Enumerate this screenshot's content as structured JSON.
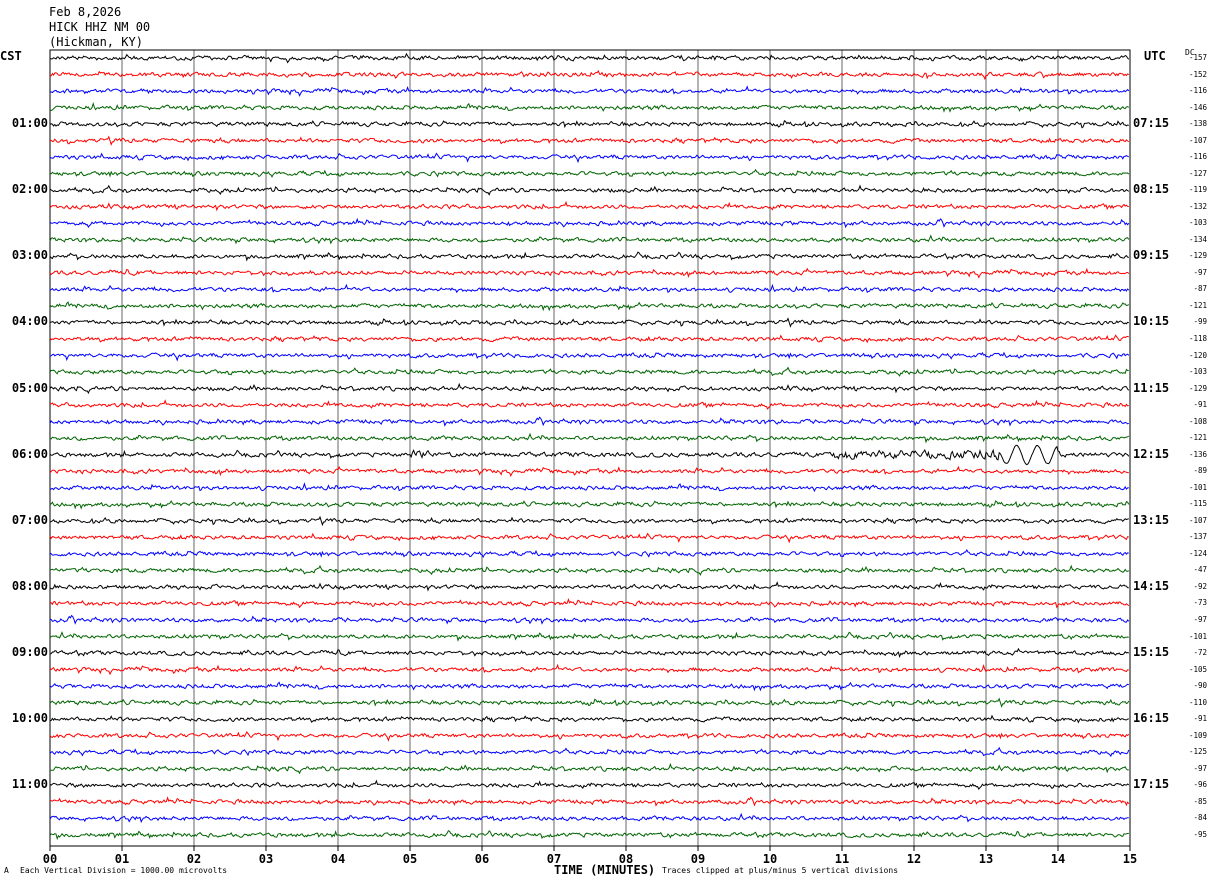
{
  "header": {
    "date": "Feb 8,2026",
    "station": "HICK HHZ NM 00",
    "location": "(Hickman, KY)"
  },
  "left_timezone": "CST",
  "right_timezone": "UTC",
  "dc_label": "DC",
  "footer": {
    "scale_note": "Each Vertical Division = 1000.00 microvolts",
    "clip_note": "Traces clipped at plus/minus 5 vertical divisions",
    "xlabel": "TIME (MINUTES)",
    "mark": "A"
  },
  "chart_data": {
    "type": "line",
    "description_of_series": "helicorder seismogram, 48 traces of 15 minutes each",
    "xlabel": "TIME (MINUTES)",
    "xlim": [
      0,
      15
    ],
    "x_ticks": [
      "00",
      "01",
      "02",
      "03",
      "04",
      "05",
      "06",
      "07",
      "08",
      "09",
      "10",
      "11",
      "12",
      "13",
      "14",
      "15"
    ],
    "trace_colors": [
      "#000000",
      "#ff0000",
      "#0000ff",
      "#006400"
    ],
    "left_hour_labels": [
      "01:00",
      "02:00",
      "03:00",
      "04:00",
      "05:00",
      "06:00",
      "07:00",
      "08:00",
      "09:00",
      "10:00",
      "11:00"
    ],
    "right_hour_labels": [
      "07:15",
      "08:15",
      "09:15",
      "10:15",
      "11:15",
      "12:15",
      "13:15",
      "14:15",
      "15:15",
      "16:15",
      "17:15"
    ],
    "dc_offsets": [
      "-157",
      "-152",
      "-116",
      "-146",
      "-138",
      "-107",
      "-116",
      "-127",
      "-119",
      "-132",
      "-103",
      "-134",
      "-129",
      "-97",
      "-87",
      "-121",
      "-99",
      "-118",
      "-120",
      "-103",
      "-129",
      "-91",
      "-108",
      "-121",
      "-136",
      "-89",
      "-101",
      "-115",
      "-107",
      "-137",
      "-124",
      "-47",
      "-92",
      "-73",
      "-97",
      "-101",
      "-72",
      "-105",
      "-90",
      "-110",
      "-91",
      "-109",
      "-125",
      "-97",
      "-96",
      "-85",
      "-84",
      "-95"
    ],
    "event": {
      "trace_label": "06:00",
      "start_minute": 5.0,
      "strong_minutes": [
        11.0,
        13.8
      ]
    }
  }
}
